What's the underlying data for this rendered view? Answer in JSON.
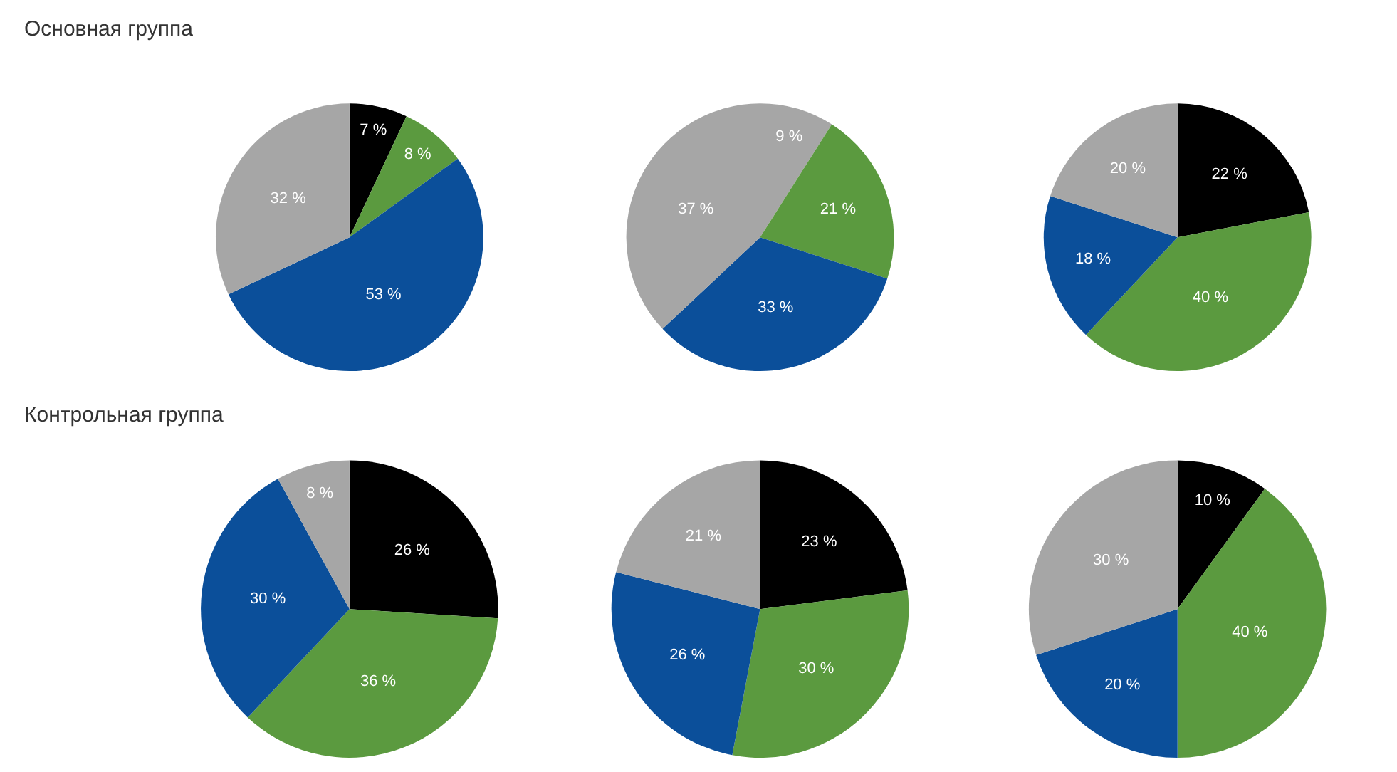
{
  "chart_data": [
    {
      "type": "pie",
      "title": "Основная группа",
      "categories": [
        null,
        null,
        null,
        null
      ],
      "values": [
        7,
        8,
        53,
        32
      ],
      "value_labels": [
        "7 %",
        "8 %",
        "53 %",
        "32 %"
      ],
      "colors": [
        "#000000",
        "#5b9a3f",
        "#0b4f9a",
        "#a6a6a6"
      ]
    },
    {
      "type": "pie",
      "categories": [
        null,
        null,
        null,
        null
      ],
      "values": [
        9,
        21,
        33,
        37
      ],
      "value_labels": [
        "9 %",
        "21 %",
        "33 %",
        "37 %"
      ],
      "colors": [
        "#a6a6a6",
        "#5b9a3f",
        "#0b4f9a",
        "#a6a6a6"
      ]
    },
    {
      "type": "pie",
      "categories": [
        null,
        null,
        null,
        null
      ],
      "values": [
        22,
        40,
        18,
        20
      ],
      "value_labels": [
        "22 %",
        "40 %",
        "18 %",
        "20 %"
      ],
      "colors": [
        "#000000",
        "#5b9a3f",
        "#0b4f9a",
        "#a6a6a6"
      ]
    },
    {
      "type": "pie",
      "title": "Контрольная группа",
      "categories": [
        null,
        null,
        null,
        null
      ],
      "values": [
        26,
        36,
        30,
        8
      ],
      "value_labels": [
        "26 %",
        "36 %",
        "30 %",
        "8 %"
      ],
      "colors": [
        "#000000",
        "#5b9a3f",
        "#0b4f9a",
        "#a6a6a6"
      ]
    },
    {
      "type": "pie",
      "categories": [
        null,
        null,
        null,
        null
      ],
      "values": [
        23,
        30,
        26,
        21
      ],
      "value_labels": [
        "23 %",
        "30 %",
        "26 %",
        "21 %"
      ],
      "colors": [
        "#000000",
        "#5b9a3f",
        "#0b4f9a",
        "#a6a6a6"
      ]
    },
    {
      "type": "pie",
      "categories": [
        null,
        null,
        null,
        null
      ],
      "values": [
        10,
        40,
        20,
        30
      ],
      "value_labels": [
        "10 %",
        "40 %",
        "20 %",
        "30 %"
      ],
      "colors": [
        "#000000",
        "#5b9a3f",
        "#0b4f9a",
        "#a6a6a6"
      ]
    }
  ]
}
